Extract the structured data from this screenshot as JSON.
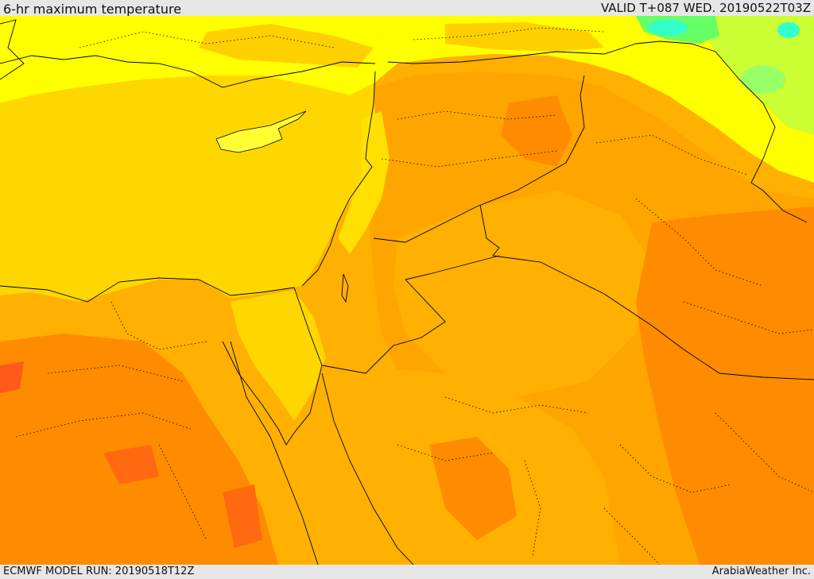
{
  "header": {
    "title": "6-hr maximum temperature",
    "valid": "VALID T+087 WED. 20190522T03Z"
  },
  "footer": {
    "model_run": "ECMWF MODEL RUN: 20190518T12Z",
    "credit": "ArabiaWeather Inc."
  },
  "map": {
    "colors": {
      "sea": "#ffd700",
      "band_yellow": "#ffff00",
      "band_lightgreen": "#ccff33",
      "band_green": "#66ff66",
      "band_cyan": "#33ffcc",
      "band_amber": "#ffc000",
      "band_orange": "#ffa500",
      "band_darkorange": "#ff8800",
      "band_red": "#ff5a1a",
      "border": "#000000"
    }
  }
}
